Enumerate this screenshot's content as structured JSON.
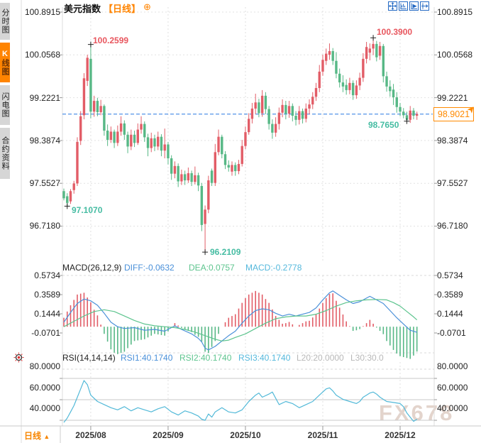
{
  "sidebar": {
    "tabs": [
      {
        "label": "分时图",
        "selected": false
      },
      {
        "label": "K线图",
        "selected": true
      },
      {
        "label": "闪电图",
        "selected": false
      },
      {
        "label": "合约资料",
        "selected": false
      }
    ]
  },
  "header": {
    "title": "美元指数",
    "period_tag": "【日线】",
    "plus_icon": "⊕",
    "toolbar_icons": [
      "pan-crosshair-icon",
      "chart-axis-icon",
      "chart-play-icon",
      "shift-right-icon"
    ]
  },
  "main_chart": {
    "y_axis_labels": [
      "100.8915",
      "100.0568",
      "99.2221",
      "98.3874",
      "97.5527",
      "96.7180"
    ],
    "current_price": "98.9021",
    "annotations": [
      {
        "text": "100.2599",
        "kind": "high"
      },
      {
        "text": "100.3900",
        "kind": "high"
      },
      {
        "text": "97.1070",
        "kind": "low"
      },
      {
        "text": "96.2109",
        "kind": "low"
      },
      {
        "text": "98.7650",
        "kind": "low"
      }
    ]
  },
  "macd": {
    "title": "MACD(26,12,9)",
    "diff_label": "DIFF:-0.0632",
    "dea_label": "DEA:0.0757",
    "macd_label": "MACD:-0.2778",
    "axis_labels": [
      "0.5734",
      "0.3589",
      "0.1444",
      "-0.0701"
    ]
  },
  "rsi": {
    "title": "RSI(14,14,14)",
    "rsi1_label": "RSI1:40.1740",
    "rsi2_label": "RSI2:40.1740",
    "rsi3_label": "RSI3:40.1740",
    "l20_label": "L20:20.0000",
    "l30_label": "L30:30.0",
    "axis_labels": [
      "80.0000",
      "60.0000",
      "40.0000"
    ]
  },
  "bottom_axis": {
    "period_button": "日线",
    "period_arrow": "▲",
    "dates": [
      "2025/08",
      "2025/09",
      "2025/10",
      "2025/11",
      "2025/12"
    ]
  },
  "watermark": "FX678",
  "colors": {
    "up_candle": "#e25d67",
    "down_candle": "#57b886",
    "diff_line": "#4a90d9",
    "dea_line": "#5dc48e",
    "macd_value_text": "#54b8dc",
    "rsi_line": "#52b9d8",
    "accent_orange": "#ff8400",
    "annotation_red": "#e8565e",
    "annotation_teal": "#45bca2",
    "dashed_price_line": "#2879e2",
    "gray_label": "#b8b8b8",
    "toolbar_blue": "#2268c3"
  },
  "chart_data": {
    "type": "candlestick+macd+rsi",
    "title": "美元指数 日线 (US Dollar Index, daily)",
    "x_axis": {
      "tick_labels": [
        "2025/08",
        "2025/09",
        "2025/10",
        "2025/11",
        "2025/12"
      ],
      "tick_indices": [
        8,
        31,
        54,
        77,
        100
      ]
    },
    "y_axis": {
      "values": [
        100.8915,
        100.0568,
        99.2221,
        98.3874,
        97.5527,
        96.718
      ]
    },
    "current_price": 98.9021,
    "marked_points": [
      {
        "index": 8,
        "price": 100.2599,
        "type": "high"
      },
      {
        "index": 92,
        "price": 100.39,
        "type": "high"
      },
      {
        "index": 1,
        "price": 97.107,
        "type": "low"
      },
      {
        "index": 42,
        "price": 96.2109,
        "type": "low"
      },
      {
        "index": 102,
        "price": 98.765,
        "type": "low"
      }
    ],
    "candles_ohlc": [
      [
        97.4,
        97.45,
        97.22,
        97.26
      ],
      [
        97.3,
        97.36,
        97.107,
        97.17
      ],
      [
        97.2,
        97.44,
        97.15,
        97.4
      ],
      [
        97.42,
        97.6,
        97.35,
        97.55
      ],
      [
        97.55,
        98.45,
        97.5,
        98.36
      ],
      [
        98.38,
        98.96,
        98.3,
        98.86
      ],
      [
        98.88,
        99.7,
        98.8,
        99.6
      ],
      [
        99.55,
        100.06,
        99.45,
        100.0
      ],
      [
        99.98,
        100.2599,
        98.82,
        98.95
      ],
      [
        98.95,
        99.26,
        98.85,
        99.16
      ],
      [
        99.16,
        99.22,
        98.86,
        98.94
      ],
      [
        98.94,
        99.18,
        98.88,
        99.06
      ],
      [
        99.06,
        99.09,
        98.48,
        98.58
      ],
      [
        98.58,
        98.7,
        98.28,
        98.4
      ],
      [
        98.4,
        98.66,
        98.34,
        98.56
      ],
      [
        98.56,
        98.6,
        98.24,
        98.34
      ],
      [
        98.34,
        98.68,
        98.28,
        98.56
      ],
      [
        98.56,
        98.86,
        98.48,
        98.72
      ],
      [
        98.72,
        98.78,
        98.4,
        98.5
      ],
      [
        98.5,
        98.56,
        98.14,
        98.27
      ],
      [
        98.27,
        98.6,
        98.2,
        98.5
      ],
      [
        98.5,
        98.58,
        98.26,
        98.34
      ],
      [
        98.34,
        98.72,
        98.3,
        98.6
      ],
      [
        98.6,
        98.86,
        98.52,
        98.71
      ],
      [
        98.71,
        98.76,
        98.36,
        98.45
      ],
      [
        98.45,
        98.52,
        98.08,
        98.24
      ],
      [
        98.24,
        98.54,
        98.16,
        98.43
      ],
      [
        98.43,
        98.5,
        98.18,
        98.27
      ],
      [
        98.27,
        98.56,
        98.2,
        98.46
      ],
      [
        98.46,
        98.51,
        98.08,
        98.19
      ],
      [
        98.19,
        98.62,
        98.04,
        98.31
      ],
      [
        98.31,
        98.36,
        97.92,
        98.04
      ],
      [
        98.04,
        98.1,
        97.62,
        97.74
      ],
      [
        97.74,
        97.98,
        97.65,
        97.89
      ],
      [
        97.89,
        97.94,
        97.48,
        97.59
      ],
      [
        97.59,
        97.82,
        97.52,
        97.73
      ],
      [
        97.73,
        97.8,
        97.52,
        97.61
      ],
      [
        97.61,
        97.86,
        97.56,
        97.75
      ],
      [
        97.75,
        97.8,
        97.5,
        97.58
      ],
      [
        97.58,
        97.88,
        97.53,
        97.71
      ],
      [
        97.71,
        97.76,
        97.4,
        97.51
      ],
      [
        97.5,
        97.56,
        96.62,
        96.74
      ],
      [
        96.76,
        97.12,
        96.2109,
        97.04
      ],
      [
        97.04,
        97.7,
        96.97,
        97.61
      ],
      [
        97.8,
        97.84,
        97.5,
        97.56
      ],
      [
        97.56,
        98.32,
        97.5,
        98.16
      ],
      [
        98.16,
        98.6,
        98.1,
        98.46
      ],
      [
        98.46,
        98.5,
        98.04,
        98.12
      ],
      [
        98.12,
        98.18,
        97.83,
        97.91
      ],
      [
        97.91,
        98.0,
        97.78,
        97.86
      ],
      [
        97.78,
        97.98,
        97.7,
        97.91
      ],
      [
        97.91,
        97.96,
        97.7,
        97.79
      ],
      [
        97.79,
        98.01,
        97.73,
        97.93
      ],
      [
        97.93,
        98.4,
        97.88,
        98.28
      ],
      [
        98.28,
        98.66,
        98.22,
        98.55
      ],
      [
        98.55,
        98.92,
        98.5,
        98.81
      ],
      [
        98.81,
        99.12,
        98.72,
        99.01
      ],
      [
        99.01,
        99.3,
        98.9,
        99.13
      ],
      [
        99.13,
        99.2,
        98.84,
        98.92
      ],
      [
        98.92,
        99.37,
        98.85,
        99.26
      ],
      [
        99.26,
        99.33,
        98.9,
        99.0
      ],
      [
        99.0,
        99.06,
        98.6,
        98.71
      ],
      [
        98.71,
        98.8,
        98.42,
        98.54
      ],
      [
        98.54,
        98.84,
        98.46,
        98.71
      ],
      [
        98.71,
        99.03,
        98.6,
        98.93
      ],
      [
        98.93,
        99.19,
        98.84,
        99.08
      ],
      [
        99.08,
        99.16,
        98.8,
        98.91
      ],
      [
        98.91,
        99.16,
        98.83,
        99.06
      ],
      [
        99.06,
        99.11,
        98.76,
        98.87
      ],
      [
        98.87,
        98.96,
        98.68,
        98.79
      ],
      [
        98.79,
        99.06,
        98.7,
        98.96
      ],
      [
        98.96,
        99.01,
        98.72,
        98.81
      ],
      [
        98.81,
        99.11,
        98.74,
        99.01
      ],
      [
        99.01,
        99.19,
        98.9,
        99.09
      ],
      [
        99.09,
        99.33,
        99.0,
        99.24
      ],
      [
        99.24,
        99.51,
        99.16,
        99.41
      ],
      [
        99.41,
        99.86,
        99.33,
        99.73
      ],
      [
        99.73,
        100.06,
        99.65,
        99.96
      ],
      [
        99.94,
        100.18,
        99.86,
        100.08
      ],
      [
        100.06,
        100.28,
        99.96,
        100.13
      ],
      [
        100.13,
        100.19,
        99.86,
        99.94
      ],
      [
        99.94,
        100.11,
        99.6,
        99.69
      ],
      [
        99.69,
        99.79,
        99.42,
        99.52
      ],
      [
        99.52,
        99.66,
        99.33,
        99.44
      ],
      [
        99.47,
        99.58,
        99.28,
        99.37
      ],
      [
        99.37,
        99.61,
        99.29,
        99.51
      ],
      [
        99.51,
        99.56,
        99.18,
        99.27
      ],
      [
        99.27,
        99.56,
        99.2,
        99.46
      ],
      [
        99.46,
        99.71,
        99.37,
        99.61
      ],
      [
        99.61,
        100.09,
        99.53,
        99.98
      ],
      [
        99.98,
        100.31,
        99.89,
        100.21
      ],
      [
        100.1,
        100.28,
        99.95,
        100.18
      ],
      [
        100.18,
        100.39,
        100.05,
        100.27
      ],
      [
        100.27,
        100.33,
        99.93,
        100.01
      ],
      [
        100.04,
        100.31,
        99.96,
        100.23
      ],
      [
        100.23,
        100.27,
        99.52,
        99.64
      ],
      [
        99.64,
        99.73,
        99.34,
        99.44
      ],
      [
        99.44,
        99.56,
        99.24,
        99.35
      ],
      [
        99.38,
        99.49,
        99.08,
        99.23
      ],
      [
        99.23,
        99.33,
        98.93,
        99.04
      ],
      [
        99.04,
        99.12,
        98.86,
        98.95
      ],
      [
        98.95,
        99.02,
        98.82,
        98.88
      ],
      [
        98.88,
        98.95,
        98.765,
        98.79
      ],
      [
        98.79,
        99.06,
        98.73,
        98.97
      ],
      [
        98.97,
        99.02,
        98.8,
        98.87
      ],
      [
        98.87,
        98.95,
        98.79,
        98.9021
      ]
    ],
    "macd": {
      "params": [
        26,
        12,
        9
      ],
      "diff_current": -0.0632,
      "dea_current": 0.0757,
      "macd_current": -0.2778,
      "axis_values": [
        0.5734,
        0.3589,
        0.1444,
        -0.0701
      ],
      "diff_keypoints": [
        [
          0,
          0.05
        ],
        [
          2,
          0.16
        ],
        [
          4,
          0.26
        ],
        [
          6,
          0.31
        ],
        [
          8,
          0.29
        ],
        [
          10,
          0.24
        ],
        [
          12,
          0.15
        ],
        [
          14,
          0.05
        ],
        [
          16,
          0.0
        ],
        [
          18,
          -0.02
        ],
        [
          21,
          -0.01
        ],
        [
          24,
          -0.04
        ],
        [
          27,
          -0.03
        ],
        [
          30,
          -0.05
        ],
        [
          33,
          0.01
        ],
        [
          35,
          -0.03
        ],
        [
          38,
          -0.08
        ],
        [
          40,
          -0.13
        ],
        [
          41,
          -0.17
        ],
        [
          42,
          -0.24
        ],
        [
          43,
          -0.26
        ],
        [
          45,
          -0.22
        ],
        [
          47,
          -0.16
        ],
        [
          49,
          -0.1
        ],
        [
          51,
          -0.05
        ],
        [
          53,
          0.04
        ],
        [
          55,
          0.12
        ],
        [
          57,
          0.18
        ],
        [
          59,
          0.2
        ],
        [
          61,
          0.19
        ],
        [
          63,
          0.15
        ],
        [
          65,
          0.12
        ],
        [
          67,
          0.14
        ],
        [
          69,
          0.12
        ],
        [
          71,
          0.14
        ],
        [
          73,
          0.16
        ],
        [
          75,
          0.21
        ],
        [
          77,
          0.3
        ],
        [
          79,
          0.38
        ],
        [
          80,
          0.4
        ],
        [
          82,
          0.35
        ],
        [
          84,
          0.3
        ],
        [
          86,
          0.26
        ],
        [
          88,
          0.28
        ],
        [
          90,
          0.32
        ],
        [
          91,
          0.34
        ],
        [
          93,
          0.3
        ],
        [
          95,
          0.26
        ],
        [
          97,
          0.18
        ],
        [
          99,
          0.1
        ],
        [
          101,
          0.03
        ],
        [
          103,
          -0.04
        ],
        [
          105,
          -0.063
        ]
      ],
      "dea_keypoints": [
        [
          0,
          0.0
        ],
        [
          3,
          0.06
        ],
        [
          6,
          0.12
        ],
        [
          9,
          0.17
        ],
        [
          12,
          0.19
        ],
        [
          15,
          0.17
        ],
        [
          18,
          0.12
        ],
        [
          21,
          0.07
        ],
        [
          24,
          0.03
        ],
        [
          27,
          0.01
        ],
        [
          30,
          0.0
        ],
        [
          33,
          -0.01
        ],
        [
          36,
          -0.03
        ],
        [
          39,
          -0.06
        ],
        [
          42,
          -0.1
        ],
        [
          45,
          -0.14
        ],
        [
          47,
          -0.16
        ],
        [
          49,
          -0.15
        ],
        [
          51,
          -0.12
        ],
        [
          54,
          -0.08
        ],
        [
          57,
          -0.02
        ],
        [
          60,
          0.04
        ],
        [
          63,
          0.09
        ],
        [
          66,
          0.11
        ],
        [
          69,
          0.12
        ],
        [
          72,
          0.12
        ],
        [
          75,
          0.14
        ],
        [
          78,
          0.18
        ],
        [
          81,
          0.23
        ],
        [
          84,
          0.27
        ],
        [
          87,
          0.29
        ],
        [
          90,
          0.3
        ],
        [
          93,
          0.305
        ],
        [
          96,
          0.3
        ],
        [
          98,
          0.27
        ],
        [
          100,
          0.23
        ],
        [
          102,
          0.17
        ],
        [
          104,
          0.11
        ],
        [
          105,
          0.076
        ]
      ]
    },
    "rsi": {
      "params": [
        14,
        14,
        14
      ],
      "rsi1_current": 40.174,
      "rsi2_current": 40.174,
      "rsi3_current": 40.174,
      "levels": [
        80,
        60,
        40
      ],
      "l20": 20.0,
      "l30": 30.0,
      "line_keypoints": [
        [
          0,
          38
        ],
        [
          1,
          42
        ],
        [
          2,
          48
        ],
        [
          3,
          54
        ],
        [
          4,
          62
        ],
        [
          5,
          70
        ],
        [
          6,
          78
        ],
        [
          7,
          74
        ],
        [
          8,
          64
        ],
        [
          10,
          58
        ],
        [
          12,
          55
        ],
        [
          14,
          52
        ],
        [
          16,
          50
        ],
        [
          18,
          53
        ],
        [
          20,
          49
        ],
        [
          22,
          52
        ],
        [
          24,
          50
        ],
        [
          26,
          48
        ],
        [
          28,
          51
        ],
        [
          30,
          53
        ],
        [
          32,
          48
        ],
        [
          34,
          45
        ],
        [
          36,
          49
        ],
        [
          38,
          47
        ],
        [
          40,
          44
        ],
        [
          41,
          41
        ],
        [
          42,
          40
        ],
        [
          43,
          46
        ],
        [
          44,
          43
        ],
        [
          45,
          48
        ],
        [
          47,
          52
        ],
        [
          49,
          48
        ],
        [
          51,
          47
        ],
        [
          53,
          50
        ],
        [
          55,
          58
        ],
        [
          57,
          64
        ],
        [
          58,
          66
        ],
        [
          59,
          62
        ],
        [
          61,
          65
        ],
        [
          62,
          67
        ],
        [
          64,
          55
        ],
        [
          66,
          58
        ],
        [
          68,
          56
        ],
        [
          70,
          52
        ],
        [
          72,
          55
        ],
        [
          74,
          58
        ],
        [
          76,
          64
        ],
        [
          78,
          70
        ],
        [
          79,
          71
        ],
        [
          80,
          68
        ],
        [
          81,
          64
        ],
        [
          83,
          60
        ],
        [
          85,
          58
        ],
        [
          87,
          56
        ],
        [
          88,
          58
        ],
        [
          89,
          62
        ],
        [
          90,
          64
        ],
        [
          91,
          66
        ],
        [
          92,
          67
        ],
        [
          93,
          65
        ],
        [
          94,
          62
        ],
        [
          96,
          58
        ],
        [
          98,
          57
        ],
        [
          100,
          56
        ],
        [
          101,
          53
        ],
        [
          102,
          47
        ],
        [
          103,
          43
        ],
        [
          104,
          39
        ],
        [
          105,
          41
        ]
      ]
    }
  }
}
